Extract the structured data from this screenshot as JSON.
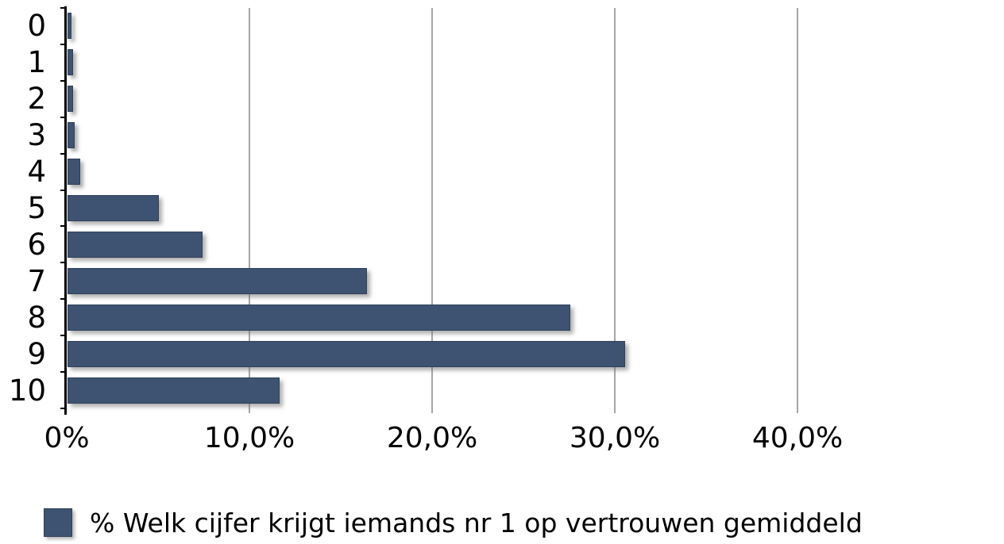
{
  "chart_data": {
    "type": "bar",
    "orientation": "horizontal",
    "title": "",
    "categories": [
      "0",
      "1",
      "2",
      "3",
      "4",
      "5",
      "6",
      "7",
      "8",
      "9",
      "10"
    ],
    "values": [
      0.2,
      0.3,
      0.3,
      0.4,
      0.7,
      5.0,
      7.4,
      16.4,
      27.5,
      30.5,
      11.6
    ],
    "series_name": "% Welk cijfer krijgt iemands nr 1 op vertrouwen gemiddeld",
    "x_axis": {
      "tick_values": [
        0,
        10,
        20,
        30,
        40
      ],
      "tick_labels": [
        "0%",
        "10,0%",
        "20,0%",
        "30,0%",
        "40,0%"
      ],
      "min": 0,
      "max": 51
    },
    "grid": true,
    "legend": {
      "position": "bottom",
      "label": "% Welk cijfer krijgt iemands nr 1 op vertrouwen gemiddeld"
    },
    "colors": {
      "bar": "#3E5372",
      "gridline": "#A6A6A6",
      "axis": "#000000",
      "text": "#000000",
      "background": "#FFFFFF"
    }
  }
}
